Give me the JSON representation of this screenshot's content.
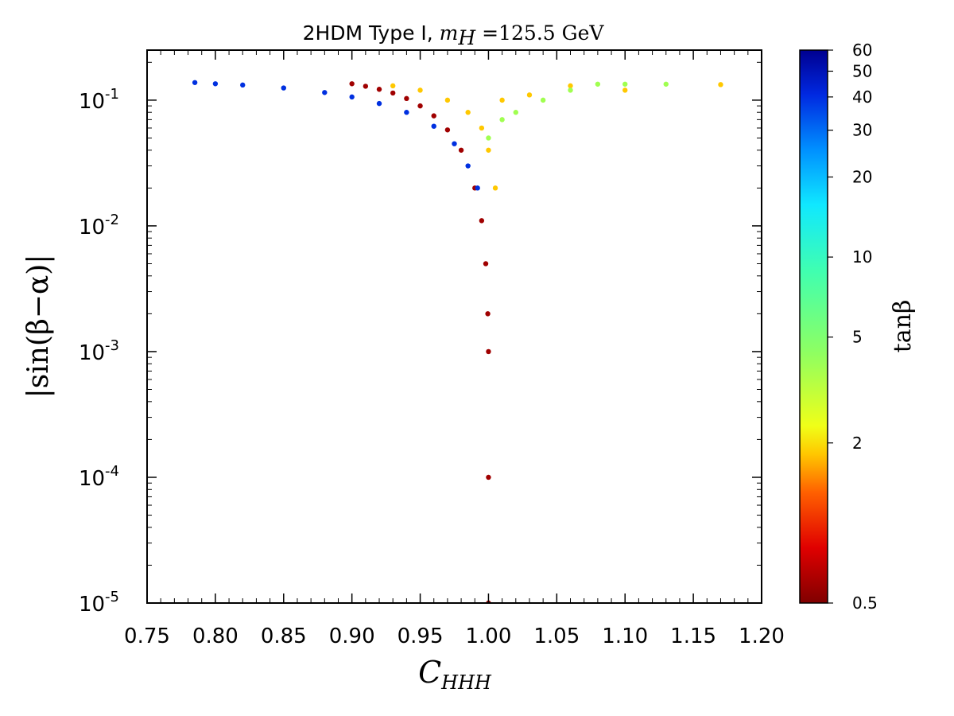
{
  "chart_data": {
    "type": "scatter",
    "title": {
      "prefix": "2HDM Type I, ",
      "math_var": "m",
      "math_sub": "H",
      "math_rest": " =125.5 GeV"
    },
    "xlabel": {
      "var": "C",
      "sub": "HHH"
    },
    "ylabel": "|sin(β−α)|",
    "xlim": [
      0.75,
      1.2
    ],
    "ylim": [
      1e-05,
      0.25
    ],
    "yscale": "log",
    "grid": false,
    "x_ticks": [
      "0.75",
      "0.80",
      "0.85",
      "0.90",
      "0.95",
      "1.00",
      "1.05",
      "1.10",
      "1.15",
      "1.20"
    ],
    "y_ticks": [
      {
        "value": 0.1,
        "base": "10",
        "exp": "-1"
      },
      {
        "value": 0.01,
        "base": "10",
        "exp": "-2"
      },
      {
        "value": 0.001,
        "base": "10",
        "exp": "-3"
      },
      {
        "value": 0.0001,
        "base": "10",
        "exp": "-4"
      },
      {
        "value": 1e-05,
        "base": "10",
        "exp": "-5"
      }
    ],
    "colorbar": {
      "label": "tanβ",
      "scale": "log",
      "range": [
        0.5,
        60
      ],
      "ticks": [
        "0.5",
        "2",
        "5",
        "10",
        "20",
        "30",
        "40",
        "50",
        "60"
      ],
      "colormap": [
        "#800000",
        "#e00000",
        "#ff6000",
        "#ffc800",
        "#f0ff18",
        "#90ff60",
        "#40ffb0",
        "#10e8ff",
        "#0090ff",
        "#0028e0",
        "#000090"
      ]
    },
    "series": [
      {
        "tanb": "0.5",
        "color": "#a00000",
        "points": [
          [
            0.9,
            0.135
          ],
          [
            0.91,
            0.129
          ],
          [
            0.92,
            0.122
          ],
          [
            0.93,
            0.114
          ],
          [
            0.94,
            0.103
          ],
          [
            0.95,
            0.09
          ],
          [
            0.96,
            0.075
          ],
          [
            0.97,
            0.058
          ],
          [
            0.98,
            0.04
          ],
          [
            0.99,
            0.02
          ],
          [
            0.995,
            0.011
          ],
          [
            0.998,
            0.005
          ],
          [
            0.9995,
            0.002
          ],
          [
            1.0,
            0.001
          ],
          [
            1.0,
            0.0001
          ],
          [
            1.0,
            1e-05
          ]
        ]
      },
      {
        "tanb": "20-60",
        "color": "#0030e0",
        "points": [
          [
            0.785,
            0.138
          ],
          [
            0.8,
            0.135
          ],
          [
            0.82,
            0.132
          ],
          [
            0.85,
            0.125
          ],
          [
            0.88,
            0.115
          ],
          [
            0.9,
            0.106
          ],
          [
            0.92,
            0.094
          ],
          [
            0.94,
            0.08
          ],
          [
            0.96,
            0.062
          ],
          [
            0.975,
            0.045
          ],
          [
            0.985,
            0.03
          ],
          [
            0.992,
            0.02
          ]
        ]
      },
      {
        "tanb": "2",
        "color": "#ffc800",
        "points": [
          [
            0.93,
            0.13
          ],
          [
            0.95,
            0.12
          ],
          [
            0.97,
            0.1
          ],
          [
            0.985,
            0.08
          ],
          [
            0.995,
            0.06
          ],
          [
            1.0,
            0.04
          ],
          [
            1.005,
            0.02
          ],
          [
            1.01,
            0.1
          ],
          [
            1.03,
            0.11
          ],
          [
            1.06,
            0.13
          ],
          [
            1.1,
            0.12
          ],
          [
            1.17,
            0.133
          ]
        ]
      },
      {
        "tanb": "3-10",
        "color": "#a0ff50",
        "points": [
          [
            1.0,
            0.05
          ],
          [
            1.01,
            0.07
          ],
          [
            1.02,
            0.08
          ],
          [
            1.04,
            0.1
          ],
          [
            1.06,
            0.12
          ],
          [
            1.08,
            0.134
          ],
          [
            1.1,
            0.134
          ],
          [
            1.13,
            0.134
          ]
        ]
      }
    ]
  }
}
